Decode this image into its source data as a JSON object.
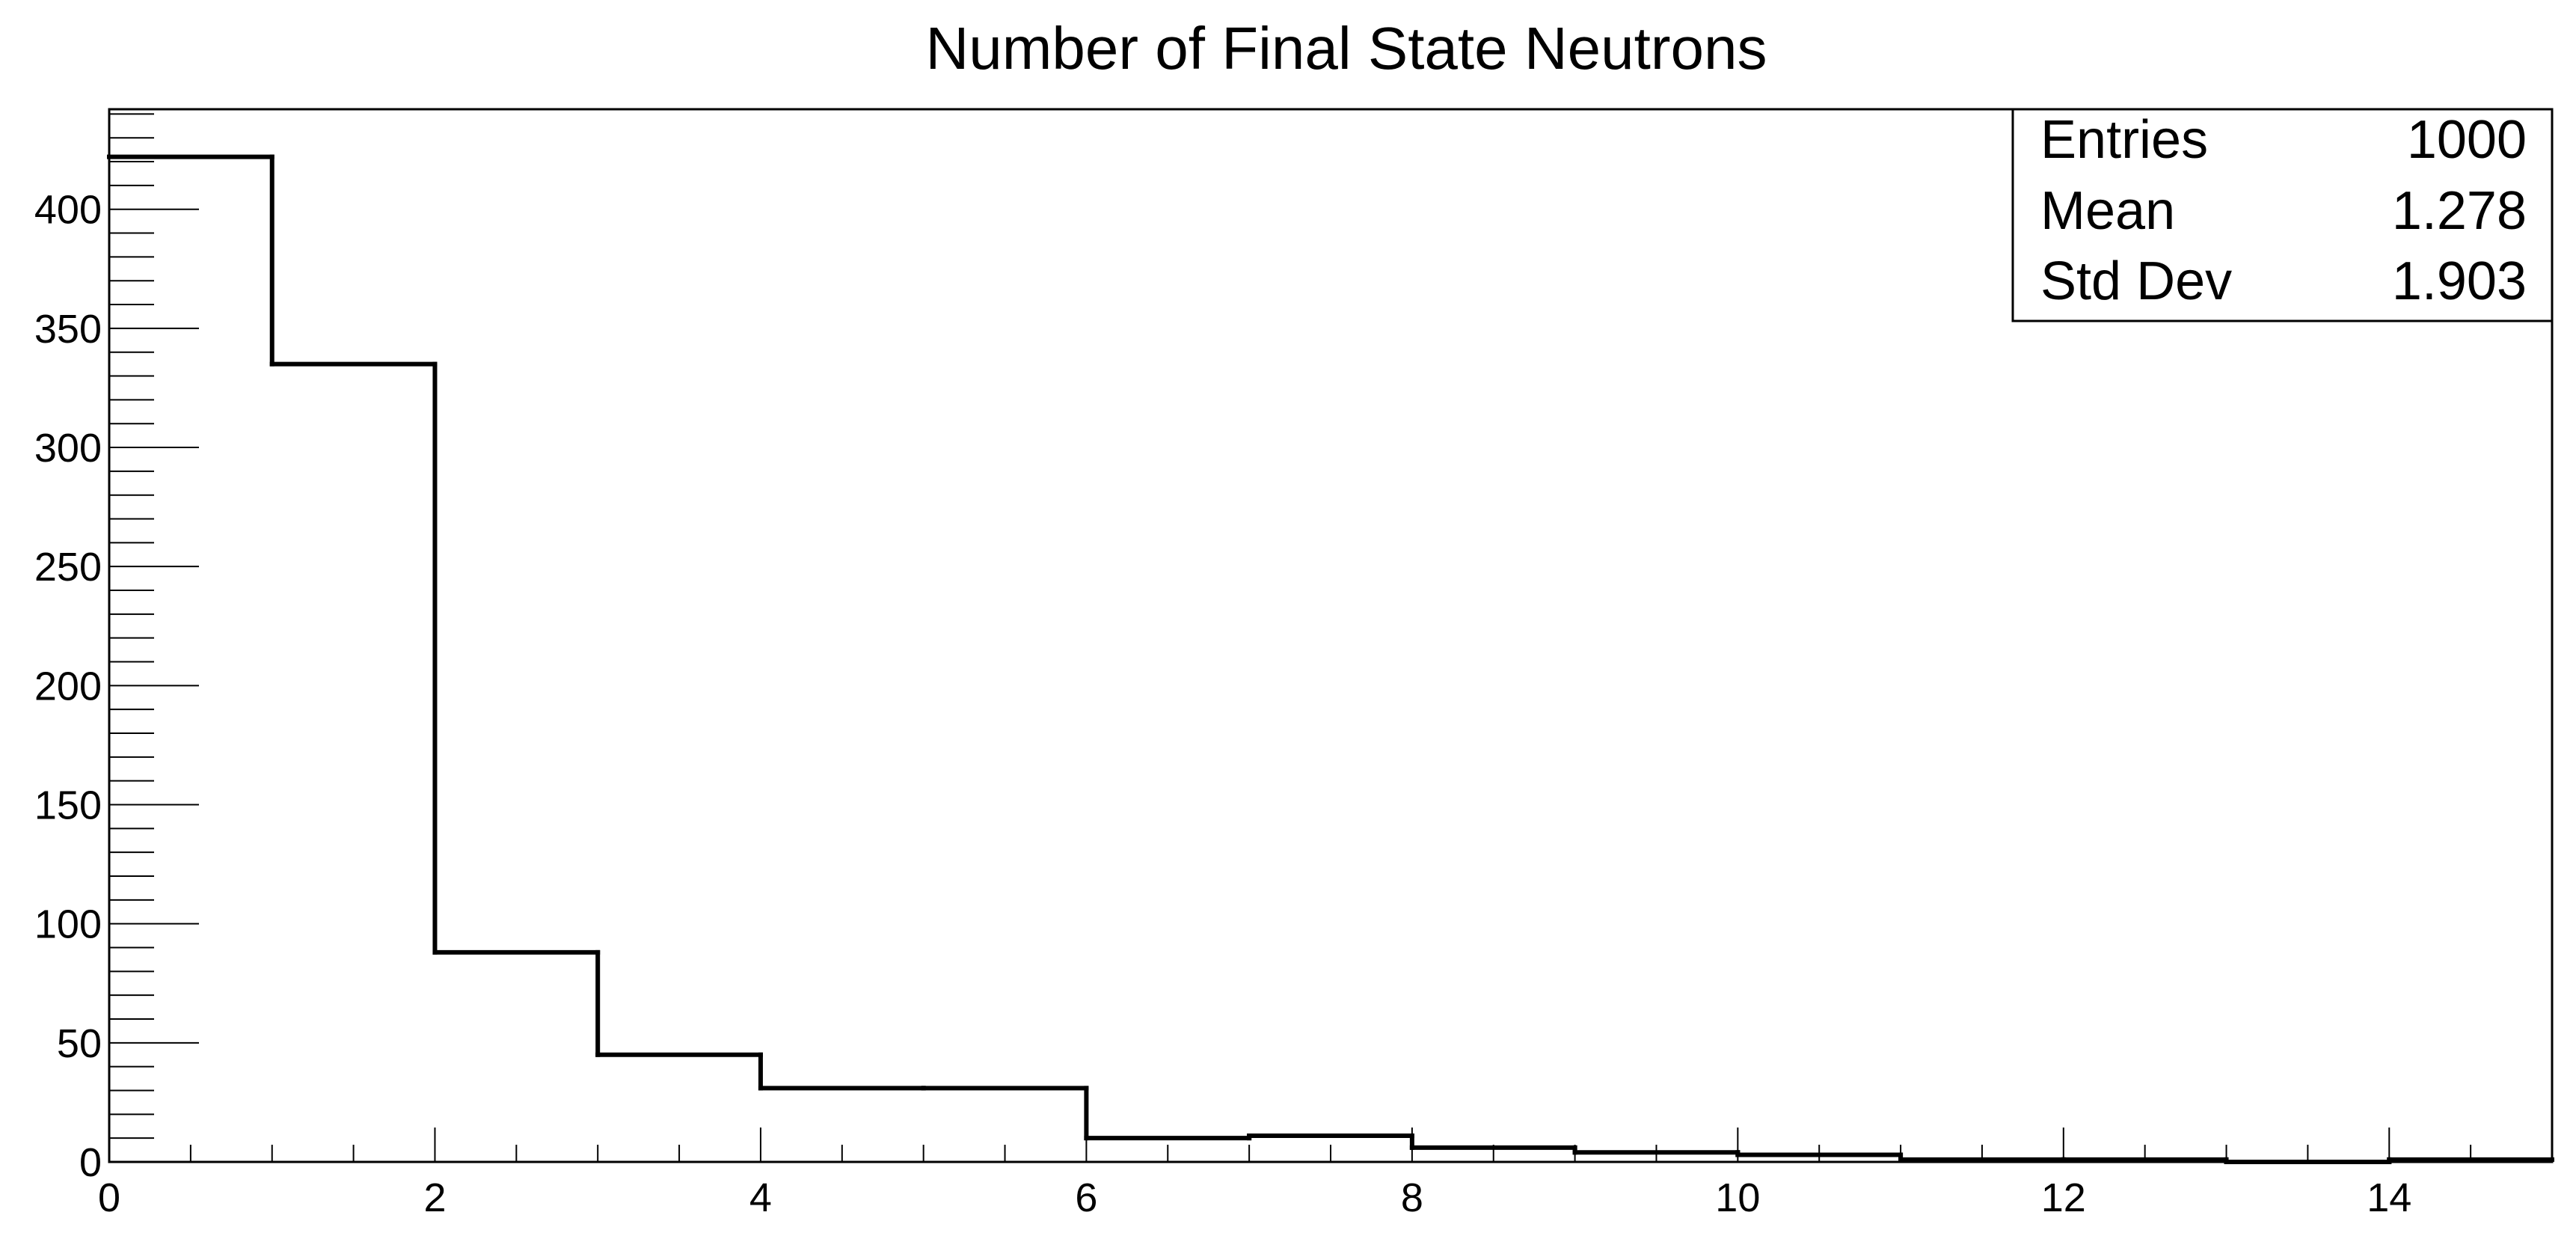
{
  "chart_data": {
    "type": "bar",
    "title": "Number of Final State Neutrons",
    "xlabel": "",
    "ylabel": "",
    "xlim": [
      0,
      15
    ],
    "ylim": [
      0,
      442
    ],
    "grid": false,
    "x_ticks": [
      0,
      2,
      4,
      6,
      8,
      10,
      12,
      14
    ],
    "x_tick_labels": [
      "0",
      "2",
      "4",
      "6",
      "8",
      "10",
      "12",
      "14"
    ],
    "y_ticks": [
      0,
      50,
      100,
      150,
      200,
      250,
      300,
      350,
      400
    ],
    "y_tick_labels": [
      "0",
      "50",
      "100",
      "150",
      "200",
      "250",
      "300",
      "350",
      "400"
    ],
    "bins": [
      {
        "low": 0,
        "high": 1,
        "count": 422
      },
      {
        "low": 1,
        "high": 2,
        "count": 335
      },
      {
        "low": 2,
        "high": 3,
        "count": 88
      },
      {
        "low": 3,
        "high": 4,
        "count": 45
      },
      {
        "low": 4,
        "high": 5,
        "count": 31
      },
      {
        "low": 5,
        "high": 6,
        "count": 31
      },
      {
        "low": 6,
        "high": 7,
        "count": 10
      },
      {
        "low": 7,
        "high": 8,
        "count": 11
      },
      {
        "low": 8,
        "high": 9,
        "count": 6
      },
      {
        "low": 9,
        "high": 10,
        "count": 4
      },
      {
        "low": 10,
        "high": 11,
        "count": 3
      },
      {
        "low": 11,
        "high": 12,
        "count": 1
      },
      {
        "low": 12,
        "high": 13,
        "count": 1
      },
      {
        "low": 13,
        "high": 14,
        "count": 0
      },
      {
        "low": 14,
        "high": 15,
        "count": 1
      }
    ],
    "stats_box": {
      "placement": "top-right",
      "rows": [
        {
          "label": "Entries",
          "value": "1000"
        },
        {
          "label": "Mean",
          "value": "1.278"
        },
        {
          "label": "Std Dev",
          "value": "1.903"
        }
      ]
    }
  }
}
